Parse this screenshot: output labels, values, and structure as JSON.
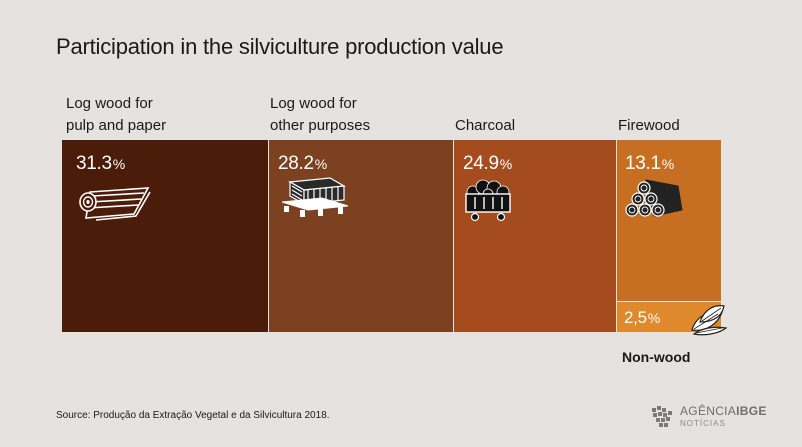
{
  "title": "Participation in the silviculture production value",
  "source": "Source: Produção da Extração Vegetal e da Silvicultura 2018.",
  "logo": {
    "main_a": "AGÊNCIA",
    "main_b": "IBGE",
    "sub": "NOTÍCIAS"
  },
  "colors": {
    "background": "#e5e2df",
    "log_pulp": "#4a1c09",
    "log_other": "#7b4120",
    "charcoal": "#a54c1e",
    "firewood": "#c66f23",
    "nonwood": "#e0892c"
  },
  "chart_data": {
    "type": "treemap",
    "title": "Participation in the silviculture production value",
    "unit": "%",
    "categories": [
      "Log wood for pulp and paper",
      "Log wood for other purposes",
      "Charcoal",
      "Firewood",
      "Non-wood"
    ],
    "values": [
      31.3,
      28.2,
      24.9,
      13.1,
      2.5
    ]
  },
  "items": [
    {
      "label_lines": [
        "Log wood for",
        "pulp and paper"
      ],
      "value_text": "31.3",
      "unit": "%",
      "icon": "paper-roll-icon"
    },
    {
      "label_lines": [
        "Log wood for",
        "other purposes"
      ],
      "value_text": "28.2",
      "unit": "%",
      "icon": "lumber-pallet-icon"
    },
    {
      "label_lines": [
        "Charcoal"
      ],
      "value_text": "24.9",
      "unit": "%",
      "icon": "coal-cart-icon"
    },
    {
      "label_lines": [
        "Firewood"
      ],
      "value_text": "13.1",
      "unit": "%",
      "icon": "log-pile-icon"
    },
    {
      "label_lines": [
        "Non-wood"
      ],
      "value_text": "2,5",
      "unit": "%",
      "icon": "leaves-icon"
    }
  ]
}
